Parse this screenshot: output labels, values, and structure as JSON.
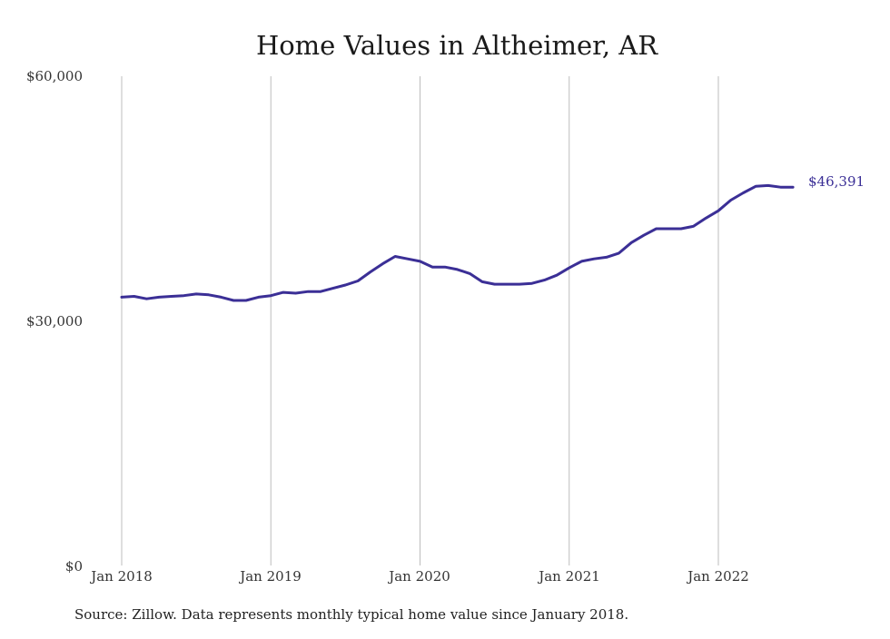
{
  "colors": {
    "line": "#3b2f96",
    "grid": "#bdbdbd",
    "text": "#222222",
    "background": "#ffffff"
  },
  "chart_data": {
    "type": "line",
    "title": "Home Values in Altheimer, AR",
    "xlabel": "",
    "ylabel": "",
    "x_ticks": [
      "Jan 2018",
      "Jan 2019",
      "Jan 2020",
      "Jan 2021",
      "Jan 2022"
    ],
    "y_ticks": [
      "$0",
      "$30,000",
      "$60,000"
    ],
    "ylim": [
      0,
      60000
    ],
    "grid": "vertical",
    "end_label": "$46,391",
    "note": "Source: Zillow. Data represents monthly typical home value since January 2018.",
    "series": [
      {
        "x": [
          "2018-01",
          "2018-02",
          "2018-03",
          "2018-04",
          "2018-05",
          "2018-06",
          "2018-07",
          "2018-08",
          "2018-09",
          "2018-10",
          "2018-11",
          "2018-12",
          "2019-01",
          "2019-02",
          "2019-03",
          "2019-04",
          "2019-05",
          "2019-06",
          "2019-07",
          "2019-08",
          "2019-09",
          "2019-10",
          "2019-11",
          "2019-12",
          "2020-01",
          "2020-02",
          "2020-03",
          "2020-04",
          "2020-05",
          "2020-06",
          "2020-07",
          "2020-08",
          "2020-09",
          "2020-10",
          "2020-11",
          "2020-12",
          "2021-01",
          "2021-02",
          "2021-03",
          "2021-04",
          "2021-05",
          "2021-06",
          "2021-07",
          "2021-08",
          "2021-09",
          "2021-10",
          "2021-11",
          "2021-12",
          "2022-01",
          "2022-02",
          "2022-03",
          "2022-04",
          "2022-05",
          "2022-06",
          "2022-07"
        ],
        "y": [
          32900,
          33000,
          32700,
          32900,
          33000,
          33100,
          33300,
          33200,
          32900,
          32500,
          32500,
          32900,
          33100,
          33500,
          33400,
          33600,
          33600,
          34000,
          34400,
          34900,
          36000,
          37000,
          37900,
          37600,
          37300,
          36600,
          36600,
          36300,
          35800,
          34800,
          34500,
          34500,
          34500,
          34600,
          35000,
          35600,
          36500,
          37300,
          37600,
          37800,
          38300,
          39600,
          40500,
          41300,
          41300,
          41300,
          41600,
          42600,
          43500,
          44800,
          45700,
          46500,
          46600,
          46400,
          46391
        ]
      }
    ]
  }
}
